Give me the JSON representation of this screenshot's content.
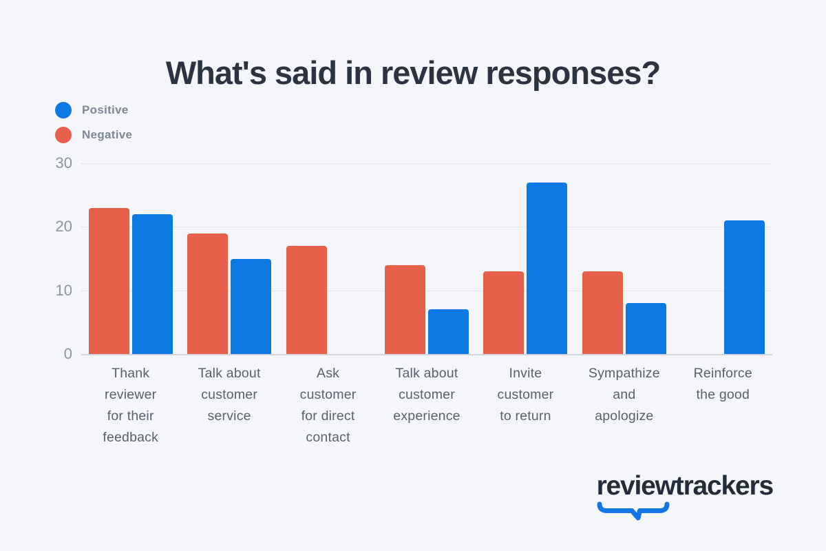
{
  "page": {
    "background": "#f4f6f9"
  },
  "title": "What's said in review responses?",
  "legend": {
    "items": [
      {
        "label": "Positive",
        "color": "#0d7ae3"
      },
      {
        "label": "Negative",
        "color": "#e7604c"
      }
    ]
  },
  "chart_data": {
    "type": "bar",
    "title": "What's said in review responses?",
    "categories": [
      "Thank\nreviewer\nfor their\nfeedback",
      "Talk about\ncustomer\nservice",
      "Ask\ncustomer\nfor direct\ncontact",
      "Talk about\ncustomer\nexperience",
      "Invite\ncustomer\nto return",
      "Sympathize\nand\napologize",
      "Reinforce\nthe good"
    ],
    "series": [
      {
        "name": "Positive",
        "color": "#0d7ae3",
        "values": [
          22,
          15,
          null,
          7,
          27,
          8,
          21
        ]
      },
      {
        "name": "Negative",
        "color": "#e7604c",
        "values": [
          23,
          19,
          17,
          14,
          13,
          13,
          null
        ]
      }
    ],
    "xlabel": "",
    "ylabel": "",
    "ylim": [
      0,
      30
    ],
    "yticks": [
      30,
      20,
      10,
      0
    ],
    "grid": "horizontal dotted",
    "legend_position": "top-left"
  },
  "logo": {
    "text": "reviewtrackers",
    "color": "#232c3b",
    "swoosh_color": "#1375e6"
  }
}
